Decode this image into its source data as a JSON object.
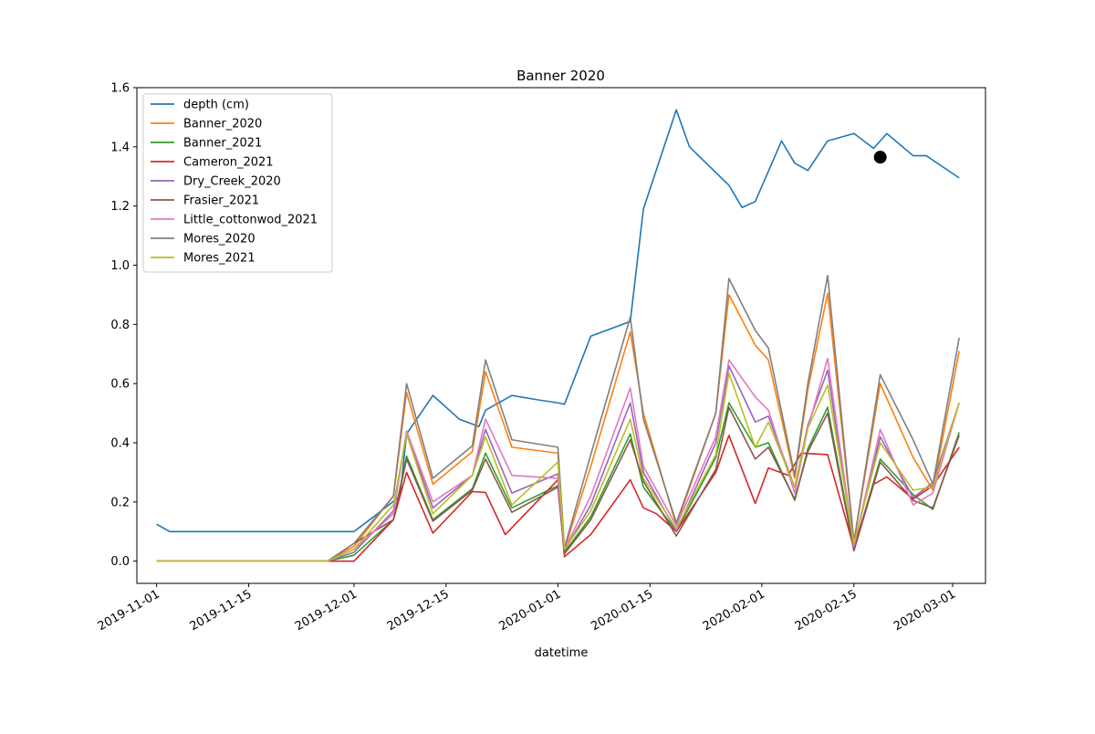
{
  "chart_data": {
    "type": "line",
    "title": "Banner 2020",
    "xlabel": "datetime",
    "ylabel": "",
    "xlim": [
      "2019-10-29",
      "2020-03-06"
    ],
    "ylim": [
      -0.075,
      1.6
    ],
    "grid": false,
    "legend_position": "top-left",
    "x_ticks": [
      "2019-11-01",
      "2019-11-15",
      "2019-12-01",
      "2019-12-15",
      "2020-01-01",
      "2020-01-15",
      "2020-02-01",
      "2020-02-15",
      "2020-03-01"
    ],
    "y_ticks": [
      "0.0",
      "0.2",
      "0.4",
      "0.6",
      "0.8",
      "1.0",
      "1.2",
      "1.4",
      "1.6"
    ],
    "series": [
      {
        "name": "depth (cm)",
        "color": "#1f77b4",
        "x": [
          "2019-11-01",
          "2019-11-03",
          "2019-11-06",
          "2019-11-09",
          "2019-11-12",
          "2019-11-15",
          "2019-11-18",
          "2019-11-21",
          "2019-11-24",
          "2019-11-27",
          "2019-11-30",
          "2019-12-01",
          "2019-12-04",
          "2019-12-08",
          "2019-12-09",
          "2019-12-13",
          "2019-12-17",
          "2019-12-20",
          "2019-12-21",
          "2019-12-25",
          "2019-12-29",
          "2020-01-01",
          "2020-01-02",
          "2020-01-06",
          "2020-01-12",
          "2020-01-14",
          "2020-01-19",
          "2020-01-21",
          "2020-01-27",
          "2020-01-29",
          "2020-01-31",
          "2020-02-04",
          "2020-02-06",
          "2020-02-08",
          "2020-02-11",
          "2020-02-15",
          "2020-02-18",
          "2020-02-20",
          "2020-02-24",
          "2020-02-26",
          "2020-03-02"
        ],
        "y": [
          0.125,
          0.1,
          0.1,
          0.1,
          0.1,
          0.1,
          0.1,
          0.1,
          0.1,
          0.1,
          0.1,
          0.1,
          0.15,
          0.22,
          0.43,
          0.56,
          0.48,
          0.455,
          0.51,
          0.56,
          0.545,
          0.535,
          0.53,
          0.76,
          0.81,
          1.19,
          1.525,
          1.4,
          1.27,
          1.195,
          1.215,
          1.42,
          1.345,
          1.32,
          1.42,
          1.445,
          1.395,
          1.445,
          1.37,
          1.37,
          1.295
        ]
      },
      {
        "name": "Banner_2020",
        "color": "#ff7f0e",
        "x": [
          "2019-11-01",
          "2019-11-27",
          "2019-12-01",
          "2019-12-07",
          "2019-12-09",
          "2019-12-13",
          "2019-12-19",
          "2019-12-21",
          "2019-12-25",
          "2020-01-01",
          "2020-01-02",
          "2020-01-06",
          "2020-01-12",
          "2020-01-14",
          "2020-01-19",
          "2020-01-25",
          "2020-01-27",
          "2020-01-31",
          "2020-02-02",
          "2020-02-06",
          "2020-02-08",
          "2020-02-11",
          "2020-02-15",
          "2020-02-19",
          "2020-02-24",
          "2020-02-27",
          "2020-03-02"
        ],
        "y": [
          0,
          0,
          0.05,
          0.22,
          0.57,
          0.26,
          0.37,
          0.64,
          0.385,
          0.365,
          0.04,
          0.32,
          0.775,
          0.5,
          0.12,
          0.5,
          0.9,
          0.73,
          0.68,
          0.28,
          0.58,
          0.905,
          0.065,
          0.6,
          0.35,
          0.24,
          0.71
        ]
      },
      {
        "name": "Banner_2021",
        "color": "#2ca02c",
        "x": [
          "2019-11-01",
          "2019-11-27",
          "2019-12-01",
          "2019-12-07",
          "2019-12-09",
          "2019-12-13",
          "2019-12-19",
          "2019-12-21",
          "2019-12-25",
          "2020-01-01",
          "2020-01-02",
          "2020-01-06",
          "2020-01-12",
          "2020-01-14",
          "2020-01-19",
          "2020-01-25",
          "2020-01-27",
          "2020-01-31",
          "2020-02-02",
          "2020-02-06",
          "2020-02-08",
          "2020-02-11",
          "2020-02-15",
          "2020-02-19",
          "2020-02-24",
          "2020-02-27",
          "2020-03-02"
        ],
        "y": [
          0,
          0,
          0.02,
          0.14,
          0.355,
          0.14,
          0.245,
          0.365,
          0.18,
          0.255,
          0.03,
          0.15,
          0.43,
          0.25,
          0.1,
          0.35,
          0.535,
          0.385,
          0.4,
          0.205,
          0.38,
          0.52,
          0.04,
          0.345,
          0.225,
          0.175,
          0.435
        ]
      },
      {
        "name": "Cameron_2021",
        "color": "#d62728",
        "x": [
          "2019-11-01",
          "2019-11-27",
          "2019-12-01",
          "2019-12-07",
          "2019-12-09",
          "2019-12-13",
          "2019-12-19",
          "2019-12-21",
          "2019-12-24",
          "2020-01-01",
          "2020-01-02",
          "2020-01-06",
          "2020-01-12",
          "2020-01-14",
          "2020-01-16",
          "2020-01-19",
          "2020-01-25",
          "2020-01-27",
          "2020-01-31",
          "2020-02-02",
          "2020-02-05",
          "2020-02-07",
          "2020-02-11",
          "2020-02-15",
          "2020-02-18",
          "2020-02-20",
          "2020-02-24",
          "2020-02-27",
          "2020-03-02"
        ],
        "y": [
          0,
          0,
          0,
          0.14,
          0.3,
          0.095,
          0.235,
          0.232,
          0.09,
          0.275,
          0.015,
          0.09,
          0.275,
          0.18,
          0.16,
          0.1,
          0.3,
          0.425,
          0.195,
          0.315,
          0.29,
          0.365,
          0.36,
          0.045,
          0.26,
          0.285,
          0.21,
          0.255,
          0.385
        ]
      },
      {
        "name": "Dry_Creek_2020",
        "color": "#9467bd",
        "x": [
          "2019-11-01",
          "2019-11-27",
          "2019-12-01",
          "2019-12-07",
          "2019-12-09",
          "2019-12-13",
          "2019-12-19",
          "2019-12-21",
          "2019-12-25",
          "2020-01-01",
          "2020-01-02",
          "2020-01-06",
          "2020-01-12",
          "2020-01-14",
          "2020-01-19",
          "2020-01-25",
          "2020-01-27",
          "2020-01-31",
          "2020-02-02",
          "2020-02-06",
          "2020-02-08",
          "2020-02-11",
          "2020-02-15",
          "2020-02-19",
          "2020-02-24",
          "2020-02-27",
          "2020-03-02"
        ],
        "y": [
          0,
          0,
          0.03,
          0.17,
          0.435,
          0.18,
          0.29,
          0.445,
          0.23,
          0.295,
          0.035,
          0.19,
          0.535,
          0.3,
          0.1,
          0.4,
          0.66,
          0.47,
          0.49,
          0.25,
          0.46,
          0.645,
          0.05,
          0.42,
          0.215,
          0.265,
          0.535
        ]
      },
      {
        "name": "Frasier_2021",
        "color": "#8c564b",
        "x": [
          "2019-11-01",
          "2019-11-27",
          "2019-12-01",
          "2019-12-07",
          "2019-12-09",
          "2019-12-13",
          "2019-12-19",
          "2019-12-21",
          "2019-12-25",
          "2020-01-01",
          "2020-01-02",
          "2020-01-06",
          "2020-01-12",
          "2020-01-14",
          "2020-01-19",
          "2020-01-25",
          "2020-01-27",
          "2020-01-31",
          "2020-02-02",
          "2020-02-06",
          "2020-02-08",
          "2020-02-11",
          "2020-02-15",
          "2020-02-19",
          "2020-02-24",
          "2020-02-27",
          "2020-03-02"
        ],
        "y": [
          0,
          0,
          0.06,
          0.14,
          0.345,
          0.135,
          0.24,
          0.345,
          0.165,
          0.25,
          0.025,
          0.14,
          0.41,
          0.27,
          0.085,
          0.31,
          0.52,
          0.345,
          0.385,
          0.21,
          0.37,
          0.5,
          0.035,
          0.335,
          0.205,
          0.18,
          0.425
        ]
      },
      {
        "name": "Little_cottonwod_2021",
        "color": "#e377c2",
        "x": [
          "2019-11-01",
          "2019-11-27",
          "2019-12-01",
          "2019-12-07",
          "2019-12-09",
          "2019-12-13",
          "2019-12-19",
          "2019-12-21",
          "2019-12-25",
          "2020-01-01",
          "2020-01-02",
          "2020-01-06",
          "2020-01-12",
          "2020-01-14",
          "2020-01-19",
          "2020-01-25",
          "2020-01-27",
          "2020-01-31",
          "2020-02-02",
          "2020-02-06",
          "2020-02-08",
          "2020-02-11",
          "2020-02-15",
          "2020-02-19",
          "2020-02-24",
          "2020-02-27",
          "2020-03-02"
        ],
        "y": [
          0,
          0,
          0.04,
          0.16,
          0.44,
          0.2,
          0.29,
          0.48,
          0.29,
          0.28,
          0.04,
          0.22,
          0.585,
          0.32,
          0.12,
          0.42,
          0.68,
          0.555,
          0.51,
          0.23,
          0.45,
          0.685,
          0.05,
          0.445,
          0.19,
          0.23,
          0.535
        ]
      },
      {
        "name": "Mores_2020",
        "color": "#7f7f7f",
        "x": [
          "2019-11-01",
          "2019-11-27",
          "2019-12-01",
          "2019-12-07",
          "2019-12-09",
          "2019-12-13",
          "2019-12-19",
          "2019-12-21",
          "2019-12-25",
          "2020-01-01",
          "2020-01-02",
          "2020-01-06",
          "2020-01-12",
          "2020-01-14",
          "2020-01-19",
          "2020-01-25",
          "2020-01-27",
          "2020-01-31",
          "2020-02-02",
          "2020-02-06",
          "2020-02-08",
          "2020-02-11",
          "2020-02-15",
          "2020-02-19",
          "2020-02-24",
          "2020-02-27",
          "2020-03-02"
        ],
        "y": [
          0,
          0,
          0.06,
          0.22,
          0.6,
          0.28,
          0.39,
          0.68,
          0.41,
          0.385,
          0.045,
          0.36,
          0.825,
          0.48,
          0.13,
          0.5,
          0.955,
          0.78,
          0.72,
          0.29,
          0.6,
          0.965,
          0.065,
          0.63,
          0.41,
          0.26,
          0.755
        ]
      },
      {
        "name": "Mores_2021",
        "color": "#bcbd22",
        "x": [
          "2019-11-01",
          "2019-11-27",
          "2019-12-01",
          "2019-12-07",
          "2019-12-09",
          "2019-12-13",
          "2019-12-19",
          "2019-12-21",
          "2019-12-25",
          "2020-01-01",
          "2020-01-02",
          "2020-01-06",
          "2020-01-12",
          "2020-01-14",
          "2020-01-19",
          "2020-01-25",
          "2020-01-27",
          "2020-01-31",
          "2020-02-02",
          "2020-02-06",
          "2020-02-08",
          "2020-02-11",
          "2020-02-15",
          "2020-02-19",
          "2020-02-24",
          "2020-02-27",
          "2020-03-02"
        ],
        "y": [
          0,
          0,
          0.04,
          0.19,
          0.43,
          0.16,
          0.29,
          0.42,
          0.19,
          0.335,
          0.04,
          0.17,
          0.48,
          0.28,
          0.11,
          0.36,
          0.635,
          0.385,
          0.47,
          0.25,
          0.45,
          0.595,
          0.06,
          0.4,
          0.24,
          0.25,
          0.535
        ]
      }
    ],
    "marker": {
      "x": "2020-02-19",
      "y": 1.365,
      "color": "#000000"
    }
  }
}
